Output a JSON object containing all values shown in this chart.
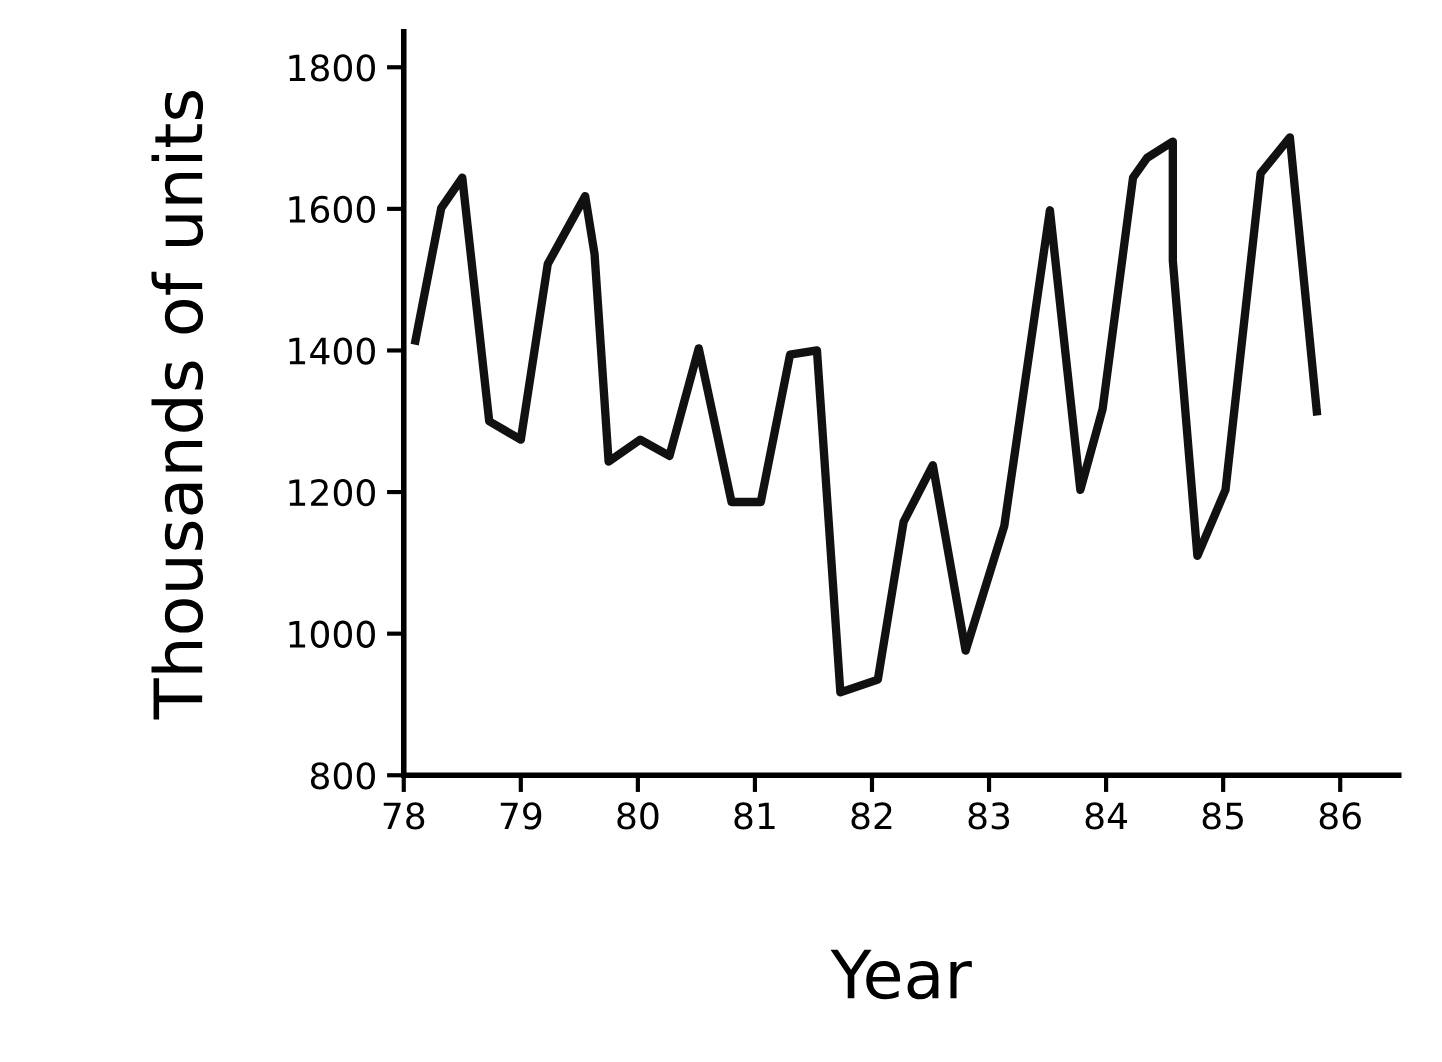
{
  "chart_data": {
    "type": "line",
    "xlabel": "Year",
    "ylabel": "Thousands of units",
    "series": [
      {
        "color": "#111111",
        "x": [
          78.1,
          78.32,
          78.5,
          78.73,
          79.0,
          79.23,
          79.55,
          79.63,
          79.75,
          80.02,
          80.27,
          80.52,
          80.8,
          81.05,
          81.3,
          81.53,
          81.73,
          82.05,
          82.27,
          82.52,
          82.8,
          83.13,
          83.52,
          83.78,
          83.97,
          84.23,
          84.35,
          84.57,
          84.57,
          84.78,
          85.02,
          85.32,
          85.57,
          85.8
        ],
        "values": [
          1414,
          1601,
          1644,
          1300,
          1274,
          1522,
          1618,
          1536,
          1243,
          1274,
          1251,
          1403,
          1186,
          1186,
          1394,
          1400,
          917,
          935,
          1158,
          1238,
          976,
          1152,
          1598,
          1203,
          1317,
          1644,
          1672,
          1695,
          1527,
          1110,
          1203,
          1650,
          1701,
          1314
        ]
      }
    ],
    "xlim": [
      78,
      86.5
    ],
    "ylim": [
      800,
      1850
    ],
    "xticks": [
      78,
      79,
      80,
      81,
      82,
      83,
      84,
      85,
      86
    ],
    "yticks": [
      800,
      1000,
      1200,
      1400,
      1600,
      1800
    ],
    "grid": false,
    "marker": "none",
    "line_style": "solid"
  }
}
